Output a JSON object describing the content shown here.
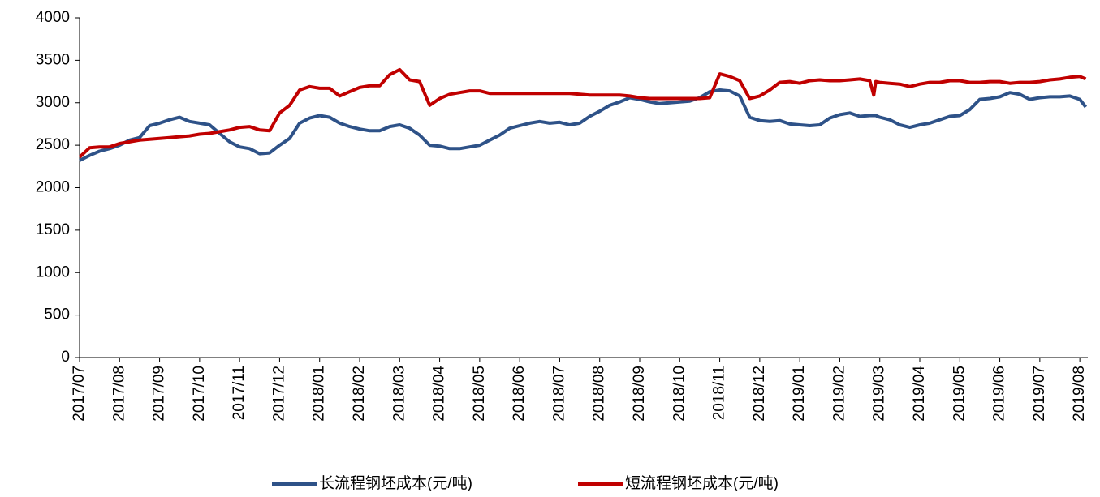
{
  "chart_data": {
    "type": "line",
    "x": [
      0,
      0.25,
      0.5,
      0.75,
      1,
      1.25,
      1.5,
      1.75,
      2,
      2.25,
      2.5,
      2.75,
      3,
      3.25,
      3.5,
      3.75,
      4,
      4.25,
      4.5,
      4.75,
      5,
      5.25,
      5.5,
      5.75,
      6,
      6.25,
      6.5,
      6.75,
      7,
      7.25,
      7.5,
      7.75,
      8,
      8.25,
      8.5,
      8.75,
      9,
      9.25,
      9.5,
      9.75,
      10,
      10.25,
      10.5,
      10.75,
      11,
      11.25,
      11.5,
      11.75,
      12,
      12.25,
      12.5,
      12.75,
      13,
      13.25,
      13.5,
      13.75,
      14,
      14.25,
      14.5,
      14.75,
      15,
      15.25,
      15.5,
      15.75,
      16,
      16.25,
      16.5,
      16.75,
      17,
      17.25,
      17.5,
      17.75,
      18,
      18.25,
      18.5,
      18.75,
      19,
      19.25,
      19.5,
      19.75,
      19.85,
      19.9,
      20,
      20.25,
      20.5,
      20.75,
      21,
      21.25,
      21.5,
      21.75,
      22,
      22.25,
      22.5,
      22.75,
      23,
      23.25,
      23.5,
      23.75,
      24,
      24.25,
      24.5,
      24.75,
      25,
      25.15
    ],
    "series": [
      {
        "name": "长流程钢坯成本(元/吨)",
        "color": "#2e5288",
        "values": [
          2320,
          2380,
          2430,
          2460,
          2500,
          2560,
          2590,
          2730,
          2760,
          2800,
          2830,
          2780,
          2760,
          2740,
          2640,
          2540,
          2480,
          2460,
          2400,
          2410,
          2500,
          2580,
          2760,
          2820,
          2850,
          2830,
          2760,
          2720,
          2690,
          2670,
          2670,
          2720,
          2740,
          2700,
          2620,
          2500,
          2490,
          2460,
          2460,
          2480,
          2500,
          2560,
          2620,
          2700,
          2730,
          2760,
          2780,
          2760,
          2770,
          2740,
          2760,
          2840,
          2900,
          2970,
          3010,
          3060,
          3040,
          3010,
          2990,
          3000,
          3010,
          3020,
          3060,
          3130,
          3150,
          3140,
          3080,
          2830,
          2790,
          2780,
          2790,
          2750,
          2740,
          2730,
          2740,
          2820,
          2860,
          2880,
          2840,
          2850,
          2850,
          2850,
          2830,
          2800,
          2740,
          2710,
          2740,
          2760,
          2800,
          2840,
          2850,
          2920,
          3040,
          3050,
          3070,
          3120,
          3100,
          3040,
          3060,
          3070,
          3070,
          3080,
          3040,
          2950
        ]
      },
      {
        "name": "短流程钢坯成本(元/吨)",
        "color": "#c00000",
        "values": [
          2360,
          2470,
          2480,
          2480,
          2520,
          2540,
          2560,
          2570,
          2580,
          2590,
          2600,
          2610,
          2630,
          2640,
          2660,
          2680,
          2710,
          2720,
          2680,
          2670,
          2880,
          2970,
          3150,
          3190,
          3170,
          3170,
          3080,
          3130,
          3180,
          3200,
          3200,
          3330,
          3390,
          3270,
          3250,
          2970,
          3050,
          3100,
          3120,
          3140,
          3140,
          3110,
          3110,
          3110,
          3110,
          3110,
          3110,
          3110,
          3110,
          3110,
          3100,
          3090,
          3090,
          3090,
          3090,
          3080,
          3060,
          3050,
          3050,
          3050,
          3050,
          3050,
          3050,
          3060,
          3340,
          3310,
          3260,
          3050,
          3080,
          3150,
          3240,
          3250,
          3230,
          3260,
          3270,
          3260,
          3260,
          3270,
          3280,
          3260,
          3090,
          3250,
          3240,
          3230,
          3220,
          3190,
          3220,
          3240,
          3240,
          3260,
          3260,
          3240,
          3240,
          3250,
          3250,
          3230,
          3240,
          3240,
          3250,
          3270,
          3280,
          3300,
          3310,
          3280
        ]
      }
    ],
    "xlim": [
      0,
      25.2
    ],
    "xticks": [
      {
        "value": 0,
        "label": "2017/07"
      },
      {
        "value": 1,
        "label": "2017/08"
      },
      {
        "value": 2,
        "label": "2017/09"
      },
      {
        "value": 3,
        "label": "2017/10"
      },
      {
        "value": 4,
        "label": "2017/11"
      },
      {
        "value": 5,
        "label": "2017/12"
      },
      {
        "value": 6,
        "label": "2018/01"
      },
      {
        "value": 7,
        "label": "2018/02"
      },
      {
        "value": 8,
        "label": "2018/03"
      },
      {
        "value": 9,
        "label": "2018/04"
      },
      {
        "value": 10,
        "label": "2018/05"
      },
      {
        "value": 11,
        "label": "2018/06"
      },
      {
        "value": 12,
        "label": "2018/07"
      },
      {
        "value": 13,
        "label": "2018/08"
      },
      {
        "value": 14,
        "label": "2018/09"
      },
      {
        "value": 15,
        "label": "2018/10"
      },
      {
        "value": 16,
        "label": "2018/11"
      },
      {
        "value": 17,
        "label": "2018/12"
      },
      {
        "value": 18,
        "label": "2019/01"
      },
      {
        "value": 19,
        "label": "2019/02"
      },
      {
        "value": 20,
        "label": "2019/03"
      },
      {
        "value": 21,
        "label": "2019/04"
      },
      {
        "value": 22,
        "label": "2019/05"
      },
      {
        "value": 23,
        "label": "2019/06"
      },
      {
        "value": 24,
        "label": "2019/07"
      },
      {
        "value": 25,
        "label": "2019/08"
      }
    ],
    "ylim": [
      0,
      4000
    ],
    "yticks": [
      0,
      500,
      1000,
      1500,
      2000,
      2500,
      3000,
      3500,
      4000
    ],
    "grid": false,
    "legend": "bottom"
  }
}
